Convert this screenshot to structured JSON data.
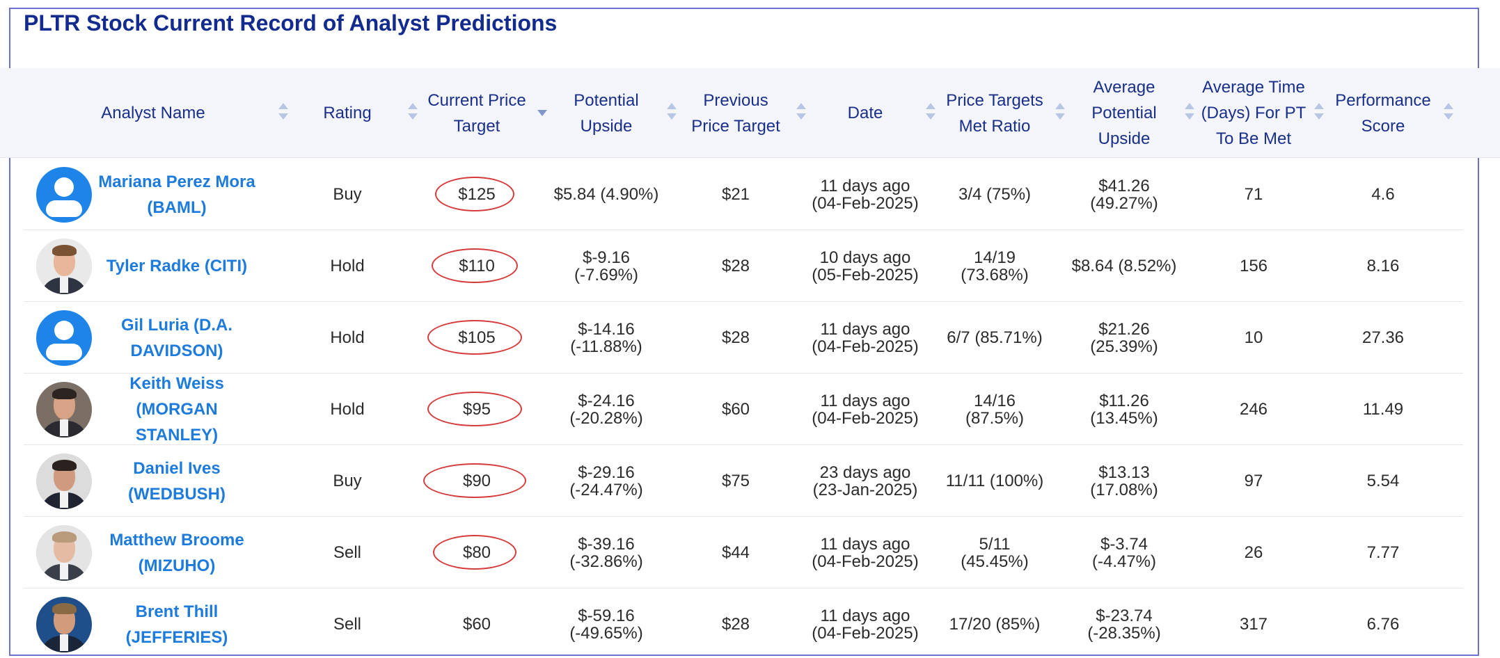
{
  "page": {
    "title": "PLTR Stock Current Record of Analyst Predictions"
  },
  "colors": {
    "title": "#132b8f",
    "header_text": "#1a2f8a",
    "analyst_link": "#1c7bdc",
    "header_band": "#f3f5fb",
    "circle_annotation": "#d63a3a",
    "frame": "#6f72cc"
  },
  "columns": [
    {
      "label": "Analyst Name"
    },
    {
      "label": "Rating"
    },
    {
      "label": "Current Price Target",
      "lines": [
        "Current Price",
        "Target"
      ],
      "sorted": "desc"
    },
    {
      "label": "Potential Upside",
      "lines": [
        "Potential",
        "Upside"
      ]
    },
    {
      "label": "Previous Price Target",
      "lines": [
        "Previous",
        "Price Target"
      ]
    },
    {
      "label": "Date"
    },
    {
      "label": "Price Targets Met Ratio",
      "lines": [
        "Price Targets",
        "Met Ratio"
      ]
    },
    {
      "label": "Average Potential Upside",
      "lines": [
        "Average",
        "Potential",
        "Upside"
      ]
    },
    {
      "label": "Average Time (Days) For PT To Be Met",
      "lines": [
        "Average Time",
        "(Days) For PT",
        "To Be Met"
      ]
    },
    {
      "label": "Performance Score",
      "lines": [
        "Performance",
        "Score"
      ]
    }
  ],
  "rows": [
    {
      "avatar": "default-user-icon",
      "name_lines": [
        "Mariana Perez Mora",
        "(BAML)"
      ],
      "rating": "Buy",
      "price_target": "$125",
      "circled": true,
      "upside_lines": [
        "$5.84 (4.90%)"
      ],
      "previous_target": "$21",
      "date_lines": [
        "11 days ago",
        "(04-Feb-2025)"
      ],
      "met_ratio_lines": [
        "3/4 (75%)"
      ],
      "avg_upside_lines": [
        "$41.26",
        "(49.27%)"
      ],
      "avg_days": "71",
      "score": "4.6"
    },
    {
      "avatar": "photo",
      "name_lines": [
        "Tyler Radke (CITI)"
      ],
      "rating": "Hold",
      "price_target": "$110",
      "circled": true,
      "upside_lines": [
        "$-9.16",
        "(-7.69%)"
      ],
      "previous_target": "$28",
      "date_lines": [
        "10 days ago",
        "(05-Feb-2025)"
      ],
      "met_ratio_lines": [
        "14/19",
        "(73.68%)"
      ],
      "avg_upside_lines": [
        "$8.64 (8.52%)"
      ],
      "avg_days": "156",
      "score": "8.16"
    },
    {
      "avatar": "default-user-icon",
      "name_lines": [
        "Gil Luria (D.A.",
        "DAVIDSON)"
      ],
      "rating": "Hold",
      "price_target": "$105",
      "circled": true,
      "upside_lines": [
        "$-14.16",
        "(-11.88%)"
      ],
      "previous_target": "$28",
      "date_lines": [
        "11 days ago",
        "(04-Feb-2025)"
      ],
      "met_ratio_lines": [
        "6/7 (85.71%)"
      ],
      "avg_upside_lines": [
        "$21.26",
        "(25.39%)"
      ],
      "avg_days": "10",
      "score": "27.36"
    },
    {
      "avatar": "photo",
      "name_lines": [
        "Keith Weiss",
        "(MORGAN STANLEY)"
      ],
      "rating": "Hold",
      "price_target": "$95",
      "circled": true,
      "upside_lines": [
        "$-24.16",
        "(-20.28%)"
      ],
      "previous_target": "$60",
      "date_lines": [
        "11 days ago",
        "(04-Feb-2025)"
      ],
      "met_ratio_lines": [
        "14/16",
        "(87.5%)"
      ],
      "avg_upside_lines": [
        "$11.26",
        "(13.45%)"
      ],
      "avg_days": "246",
      "score": "11.49"
    },
    {
      "avatar": "photo",
      "name_lines": [
        "Daniel Ives",
        "(WEDBUSH)"
      ],
      "rating": "Buy",
      "price_target": "$90",
      "circled": true,
      "upside_lines": [
        "$-29.16",
        "(-24.47%)"
      ],
      "previous_target": "$75",
      "date_lines": [
        "23 days ago",
        "(23-Jan-2025)"
      ],
      "met_ratio_lines": [
        "11/11 (100%)"
      ],
      "avg_upside_lines": [
        "$13.13",
        "(17.08%)"
      ],
      "avg_days": "97",
      "score": "5.54"
    },
    {
      "avatar": "photo",
      "name_lines": [
        "Matthew Broome",
        "(MIZUHO)"
      ],
      "rating": "Sell",
      "price_target": "$80",
      "circled": true,
      "upside_lines": [
        "$-39.16",
        "(-32.86%)"
      ],
      "previous_target": "$44",
      "date_lines": [
        "11 days ago",
        "(04-Feb-2025)"
      ],
      "met_ratio_lines": [
        "5/11",
        "(45.45%)"
      ],
      "avg_upside_lines": [
        "$-3.74",
        "(-4.47%)"
      ],
      "avg_days": "26",
      "score": "7.77"
    },
    {
      "avatar": "photo",
      "name_lines": [
        "Brent Thill",
        "(JEFFERIES)"
      ],
      "rating": "Sell",
      "price_target": "$60",
      "circled": false,
      "upside_lines": [
        "$-59.16",
        "(-49.65%)"
      ],
      "previous_target": "$28",
      "date_lines": [
        "11 days ago",
        "(04-Feb-2025)"
      ],
      "met_ratio_lines": [
        "17/20 (85%)"
      ],
      "avg_upside_lines": [
        "$-23.74",
        "(-28.35%)"
      ],
      "avg_days": "317",
      "score": "6.76"
    }
  ]
}
